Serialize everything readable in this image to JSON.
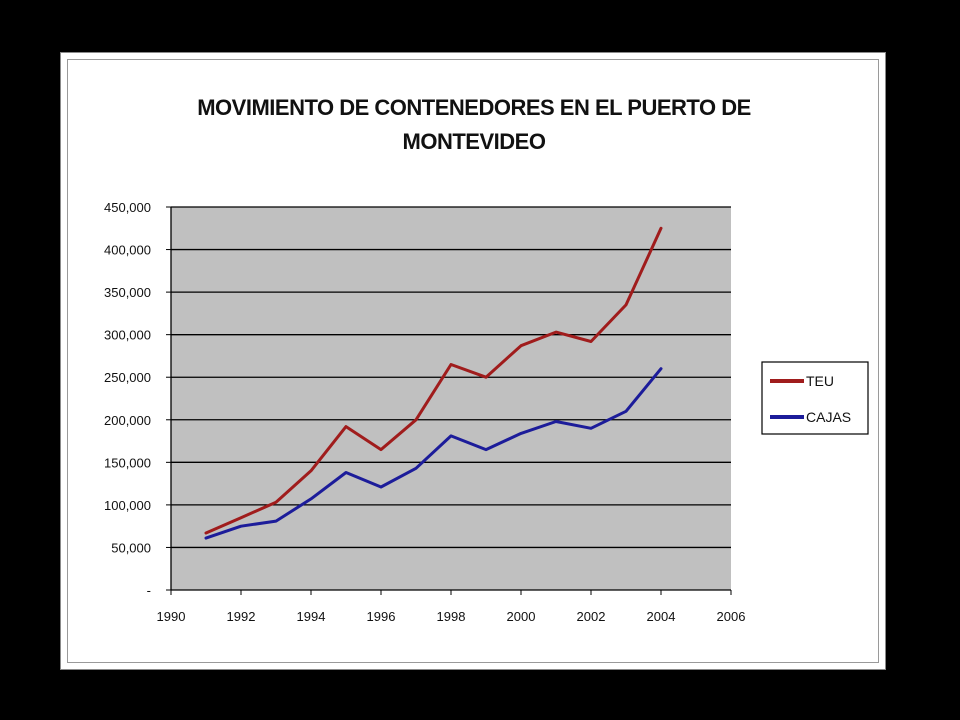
{
  "chart_data": {
    "type": "line",
    "title_line1": "MOVIMIENTO  DE CONTENEDORES EN EL PUERTO DE",
    "title_line2": "MONTEVIDEO",
    "xlabel": "",
    "ylabel": "",
    "xlim": [
      1990,
      2006
    ],
    "ylim": [
      0,
      450000
    ],
    "x_ticks": [
      1990,
      1992,
      1994,
      1996,
      1998,
      2000,
      2002,
      2004,
      2006
    ],
    "y_ticks": [
      0,
      50000,
      100000,
      150000,
      200000,
      250000,
      300000,
      350000,
      400000,
      450000
    ],
    "y_tick_labels": [
      "-",
      "50,000",
      "100,000",
      "150,000",
      "200,000",
      "250,000",
      "300,000",
      "350,000",
      "400,000",
      "450,000"
    ],
    "grid": "horizontal",
    "plot_background": "#c0c0c0",
    "legend_position": "right",
    "x": [
      1991,
      1992,
      1993,
      1994,
      1995,
      1996,
      1997,
      1998,
      1999,
      2000,
      2001,
      2002,
      2003,
      2004
    ],
    "series": [
      {
        "name": "TEU",
        "color": "#a01c1c",
        "values": [
          67000,
          85000,
          103000,
          140000,
          192000,
          165000,
          200000,
          265000,
          250000,
          287000,
          303000,
          292000,
          335000,
          425000
        ]
      },
      {
        "name": "CAJAS",
        "color": "#1c1c9a",
        "values": [
          61000,
          75000,
          81000,
          107000,
          138000,
          121000,
          143000,
          181000,
          165000,
          184000,
          198000,
          190000,
          210000,
          260000
        ]
      }
    ]
  }
}
